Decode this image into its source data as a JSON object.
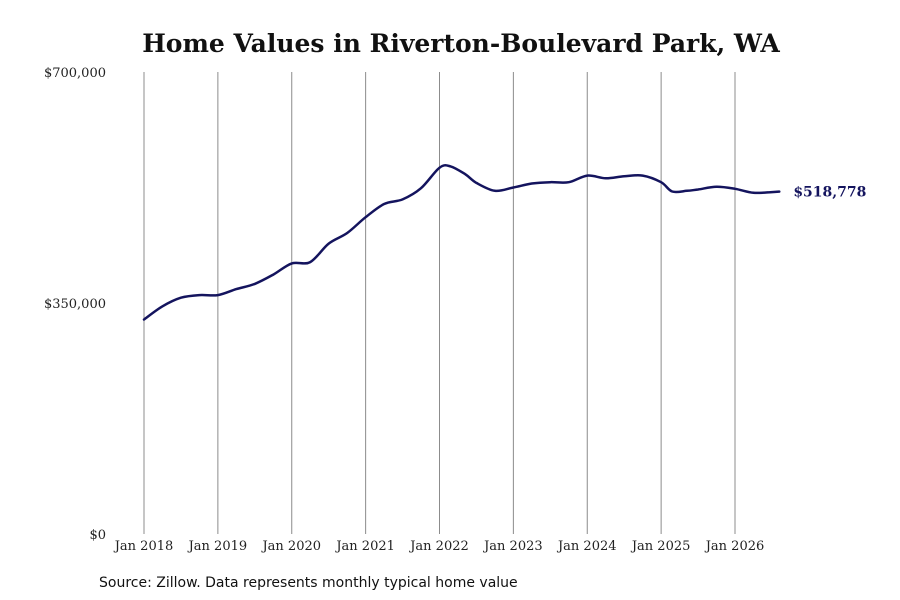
{
  "chart_data": {
    "type": "line",
    "title": "Home Values in Riverton-Boulevard Park, WA",
    "ylabel": "",
    "xlabel": "",
    "ylim": [
      0,
      700000
    ],
    "yticks": [
      {
        "value": 0,
        "label": "$0"
      },
      {
        "value": 350000,
        "label": "$350,000"
      },
      {
        "value": 700000,
        "label": "$700,000"
      }
    ],
    "xlim": [
      2018.0,
      2026.6
    ],
    "xticks": [
      {
        "value": 2018,
        "label": "Jan 2018"
      },
      {
        "value": 2019,
        "label": "Jan 2019"
      },
      {
        "value": 2020,
        "label": "Jan 2020"
      },
      {
        "value": 2021,
        "label": "Jan 2021"
      },
      {
        "value": 2022,
        "label": "Jan 2022"
      },
      {
        "value": 2023,
        "label": "Jan 2023"
      },
      {
        "value": 2024,
        "label": "Jan 2024"
      },
      {
        "value": 2025,
        "label": "Jan 2025"
      },
      {
        "value": 2026,
        "label": "Jan 2026"
      }
    ],
    "grid": "vertical",
    "line_color": "#14145e",
    "end_label": "$518,778",
    "series": [
      {
        "x": [
          2018.0,
          2018.25,
          2018.5,
          2018.75,
          2019.0,
          2019.25,
          2019.5,
          2019.75,
          2020.0,
          2020.25,
          2020.5,
          2020.75,
          2021.0,
          2021.25,
          2021.5,
          2021.75,
          2022.0,
          2022.15,
          2022.35,
          2022.5,
          2022.75,
          2023.0,
          2023.25,
          2023.5,
          2023.75,
          2024.0,
          2024.25,
          2024.5,
          2024.75,
          2025.0,
          2025.15,
          2025.35,
          2025.5,
          2025.75,
          2026.0,
          2026.25,
          2026.5,
          2026.6
        ],
        "values": [
          325000,
          345000,
          358000,
          362000,
          362000,
          371000,
          379000,
          393000,
          410000,
          412000,
          440000,
          456000,
          480000,
          500000,
          507000,
          524000,
          555000,
          557000,
          545000,
          532000,
          520000,
          525000,
          531000,
          533000,
          533000,
          543000,
          539000,
          542000,
          543000,
          533000,
          519000,
          520000,
          522000,
          526000,
          523000,
          517000,
          518000,
          518778
        ]
      }
    ]
  },
  "footer": {
    "source": "Source: Zillow. Data represents monthly typical home value"
  }
}
